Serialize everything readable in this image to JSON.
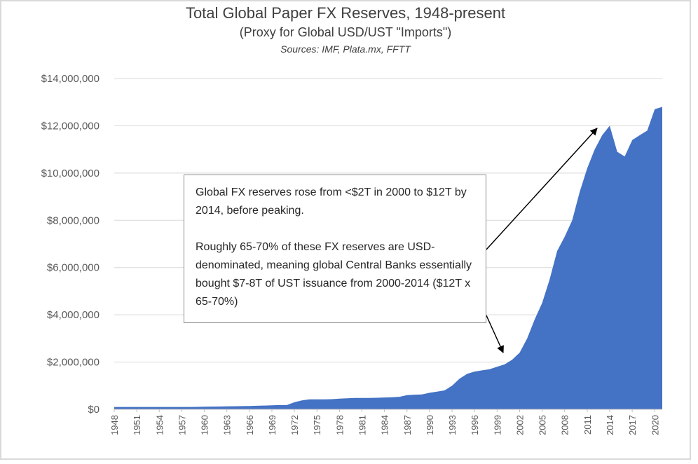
{
  "chart_data": {
    "type": "area",
    "title": "Total Global Paper FX Reserves, 1948-present",
    "subtitle": "(Proxy for Global USD/UST \"Imports\")",
    "sources": "Sources: IMF, Plata.mx, FFTT",
    "xlabel": "",
    "ylabel": "",
    "ylim": [
      0,
      14000000
    ],
    "yticks": [
      "$0",
      "$2,000,000",
      "$4,000,000",
      "$6,000,000",
      "$8,000,000",
      "$10,000,000",
      "$12,000,000",
      "$14,000,000"
    ],
    "ytick_values": [
      0,
      2000000,
      4000000,
      6000000,
      8000000,
      10000000,
      12000000,
      14000000
    ],
    "xticks": [
      "1948",
      "1951",
      "1954",
      "1957",
      "1960",
      "1963",
      "1966",
      "1969",
      "1972",
      "1975",
      "1978",
      "1981",
      "1984",
      "1987",
      "1990",
      "1993",
      "1996",
      "1999",
      "2002",
      "2005",
      "2008",
      "2011",
      "2014",
      "2017",
      "2020"
    ],
    "grid": true,
    "color": "#4472c4",
    "x": [
      1948,
      1949,
      1950,
      1951,
      1952,
      1953,
      1954,
      1955,
      1956,
      1957,
      1958,
      1959,
      1960,
      1961,
      1962,
      1963,
      1964,
      1965,
      1966,
      1967,
      1968,
      1969,
      1970,
      1971,
      1972,
      1973,
      1974,
      1975,
      1976,
      1977,
      1978,
      1979,
      1980,
      1981,
      1982,
      1983,
      1984,
      1985,
      1986,
      1987,
      1988,
      1989,
      1990,
      1991,
      1992,
      1993,
      1994,
      1995,
      1996,
      1997,
      1998,
      1999,
      2000,
      2001,
      2002,
      2003,
      2004,
      2005,
      2006,
      2007,
      2008,
      2009,
      2010,
      2011,
      2012,
      2013,
      2014,
      2015,
      2016,
      2017,
      2018,
      2019,
      2020,
      2021
    ],
    "values": [
      100000,
      100000,
      100000,
      100000,
      100000,
      100000,
      100000,
      100000,
      100000,
      100000,
      100000,
      105000,
      110000,
      115000,
      120000,
      125000,
      130000,
      135000,
      140000,
      150000,
      160000,
      170000,
      180000,
      180000,
      300000,
      380000,
      420000,
      420000,
      420000,
      430000,
      450000,
      470000,
      480000,
      480000,
      480000,
      490000,
      500000,
      510000,
      530000,
      600000,
      620000,
      630000,
      700000,
      750000,
      800000,
      1000000,
      1300000,
      1500000,
      1600000,
      1650000,
      1700000,
      1800000,
      1900000,
      2100000,
      2400000,
      3000000,
      3800000,
      4500000,
      5500000,
      6700000,
      7300000,
      8000000,
      9200000,
      10200000,
      11000000,
      11600000,
      12000000,
      10900000,
      10700000,
      11400000,
      11600000,
      11800000,
      12700000,
      12800000
    ],
    "annotation": {
      "line1": "Global FX reserves rose from <$2T in 2000 to $12T by 2014, before peaking.",
      "line2": "Roughly 65-70% of these FX reserves are USD-denominated, meaning global Central Banks essentially bought $7-8T of UST issuance from 2000-2014 ($12T x 65-70%)"
    }
  }
}
